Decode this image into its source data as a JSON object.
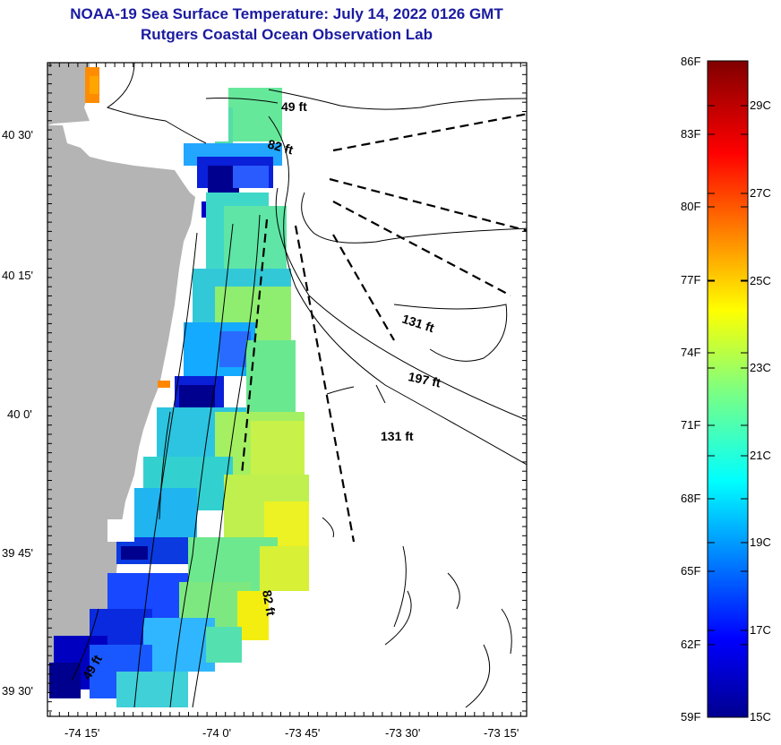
{
  "header": {
    "title": "NOAA-19 Sea Surface Temperature:  July 14, 2022 0126 GMT",
    "subtitle": "Rutgers Coastal Ocean Observation Lab"
  },
  "map": {
    "y_tick_labels": [
      "40 30'",
      "40 15'",
      "40 0'",
      "39 45'",
      "39 30'"
    ],
    "x_tick_labels": [
      "-74 15'",
      "-74 0'",
      "-73 45'",
      "-73 30'",
      "-73 15'"
    ],
    "depth_labels": [
      "49 ft",
      "82 ft",
      "131 ft",
      "197 ft",
      "131 ft",
      "82 ft",
      "49 ft"
    ],
    "land_color": "#b4b4b4"
  },
  "colorbar": {
    "fahrenheit_labels": [
      "86F",
      "83F",
      "80F",
      "77F",
      "74F",
      "71F",
      "68F",
      "65F",
      "62F",
      "59F"
    ],
    "celsius_labels": [
      "29C",
      "27C",
      "25C",
      "23C",
      "21C",
      "19C",
      "17C",
      "15C"
    ],
    "colormap": "jet"
  }
}
